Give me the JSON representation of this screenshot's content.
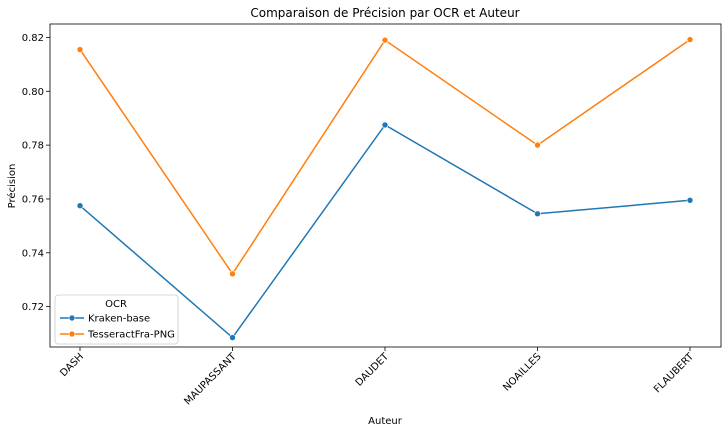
{
  "chart_data": {
    "type": "line",
    "title": "Comparaison de Précision par OCR et Auteur",
    "xlabel": "Auteur",
    "ylabel": "Précision",
    "categories": [
      "DASH",
      "MAUPASSANT",
      "DAUDET",
      "NOAILLES",
      "FLAUBERT"
    ],
    "ylim": [
      0.705,
      0.825
    ],
    "yticks": [
      0.72,
      0.74,
      0.76,
      0.78,
      0.8,
      0.82
    ],
    "ytick_labels": [
      "0.72",
      "0.74",
      "0.76",
      "0.78",
      "0.80",
      "0.82"
    ],
    "grid": false,
    "legend": {
      "title": "OCR",
      "placement": "lower-left"
    },
    "series": [
      {
        "name": "Kraken-base",
        "color": "#1f77b4",
        "marker": "circle",
        "values": [
          0.7575,
          0.7085,
          0.7875,
          0.7545,
          0.7595
        ]
      },
      {
        "name": "TesseractFra-PNG",
        "color": "#ff7f0e",
        "marker": "circle",
        "values": [
          0.8155,
          0.7322,
          0.819,
          0.78,
          0.8192
        ]
      }
    ]
  }
}
